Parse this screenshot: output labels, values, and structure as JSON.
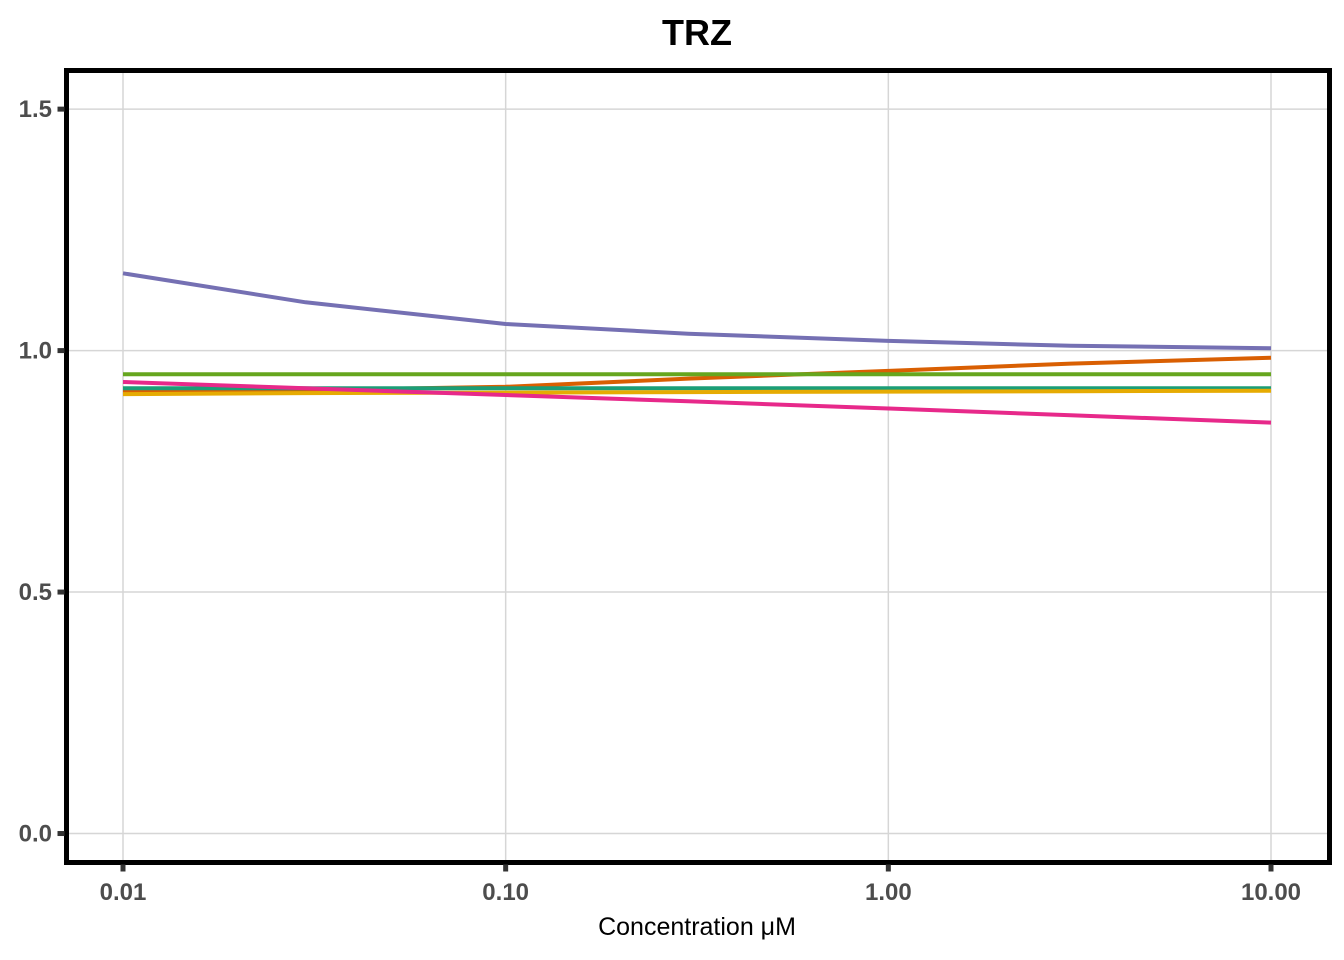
{
  "chart_data": {
    "type": "line",
    "title": "TRZ",
    "xlabel": "Concentration μM",
    "ylabel": "",
    "x_scale": "log10",
    "xlim": [
      0.01,
      10
    ],
    "ylim": [
      -0.06,
      1.58
    ],
    "x_ticks": [
      {
        "value": 0.01,
        "label": "0.01"
      },
      {
        "value": 0.1,
        "label": "0.10"
      },
      {
        "value": 1,
        "label": "1.00"
      },
      {
        "value": 10,
        "label": "10.00"
      }
    ],
    "y_ticks": [
      {
        "value": 0,
        "label": "0.0"
      },
      {
        "value": 0.5,
        "label": "0.5"
      },
      {
        "value": 1,
        "label": "1.0"
      },
      {
        "value": 1.5,
        "label": "1.5"
      }
    ],
    "grid": true,
    "legend": "none",
    "x": [
      0.01,
      0.03,
      0.1,
      0.3,
      1,
      3,
      10
    ],
    "series": [
      {
        "color": "#7570b3",
        "values": [
          1.16,
          1.1,
          1.055,
          1.035,
          1.02,
          1.01,
          1.005
        ]
      },
      {
        "color": "#d95f02",
        "values": [
          0.915,
          0.918,
          0.925,
          0.942,
          0.958,
          0.973,
          0.985
        ]
      },
      {
        "color": "#66a61e",
        "values": [
          0.951,
          0.951,
          0.951,
          0.951,
          0.951,
          0.951,
          0.951
        ]
      },
      {
        "color": "#1b9e77",
        "values": [
          0.922,
          0.922,
          0.922,
          0.922,
          0.922,
          0.922,
          0.922
        ]
      },
      {
        "color": "#e6ab02",
        "values": [
          0.91,
          0.912,
          0.913,
          0.914,
          0.915,
          0.916,
          0.917
        ]
      },
      {
        "color": "#e7298a",
        "values": [
          0.935,
          0.922,
          0.908,
          0.895,
          0.88,
          0.866,
          0.851
        ]
      }
    ]
  }
}
